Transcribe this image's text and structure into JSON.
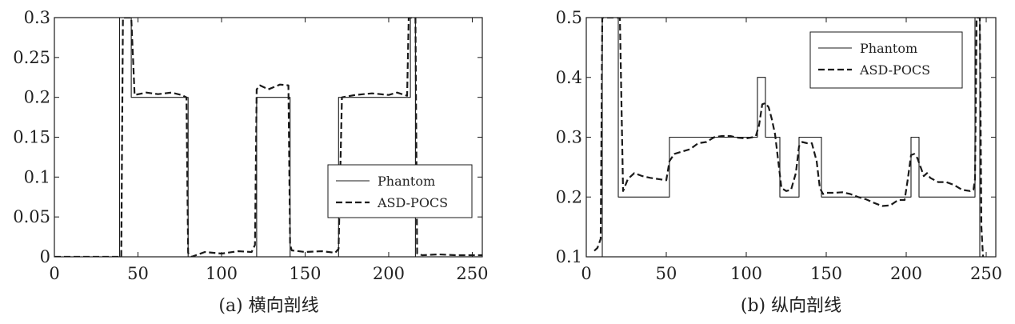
{
  "chart_data": [
    {
      "type": "line",
      "caption": "(a) 横向剖线",
      "xlim": [
        0,
        256
      ],
      "ylim": [
        0,
        0.3
      ],
      "xticks": [
        0,
        50,
        100,
        150,
        200,
        250
      ],
      "xtick_labels": [
        "0",
        "50",
        "100",
        "150",
        "200",
        "250"
      ],
      "yticks": [
        0,
        0.05,
        0.1,
        0.15,
        0.2,
        0.25,
        0.3
      ],
      "ytick_labels": [
        "0",
        "0.05",
        "0.1",
        "0.15",
        "0.2",
        "0.25",
        "0.3"
      ],
      "legend": {
        "position": "lower-right"
      },
      "series": [
        {
          "name": "Phantom",
          "style": "solid",
          "x": [
            0,
            39,
            39,
            40,
            40,
            41,
            41,
            46,
            46,
            80,
            80,
            121,
            121,
            141,
            141,
            170,
            170,
            213,
            213,
            214,
            214,
            216,
            216,
            256
          ],
          "y": [
            0,
            0,
            0.3,
            0.3,
            0.3,
            0.3,
            0.3,
            0.3,
            0.2,
            0.2,
            0,
            0,
            0.2,
            0.2,
            0,
            0,
            0.2,
            0.2,
            0.3,
            0.3,
            0.3,
            0.3,
            0,
            0
          ]
        },
        {
          "name": "ASD-POCS",
          "style": "dashed",
          "x": [
            0,
            38,
            40,
            41,
            43,
            46,
            48,
            55,
            62,
            70,
            76,
            79,
            80,
            82,
            90,
            100,
            110,
            118,
            120,
            121,
            123,
            128,
            135,
            140,
            141,
            142,
            150,
            160,
            168,
            170,
            172,
            180,
            190,
            200,
            205,
            211,
            212,
            214,
            215,
            216,
            217,
            220,
            230,
            240,
            256
          ],
          "y": [
            0,
            0,
            0,
            0.3,
            0.3,
            0.3,
            0.203,
            0.206,
            0.204,
            0.206,
            0.203,
            0.2,
            0.005,
            0,
            0.006,
            0.004,
            0.007,
            0.006,
            0.015,
            0.21,
            0.215,
            0.21,
            0.216,
            0.215,
            0.015,
            0.008,
            0.006,
            0.007,
            0.005,
            0.01,
            0.2,
            0.203,
            0.205,
            0.203,
            0.206,
            0.202,
            0.3,
            0.3,
            0.3,
            0.3,
            0.004,
            0.002,
            0.003,
            0.002,
            0.002
          ]
        }
      ]
    },
    {
      "type": "line",
      "caption": "(b) 纵向剖线",
      "xlim": [
        0,
        256
      ],
      "ylim": [
        0.1,
        0.5
      ],
      "xticks": [
        0,
        50,
        100,
        150,
        200,
        250
      ],
      "xtick_labels": [
        "0",
        "50",
        "100",
        "150",
        "200",
        "250"
      ],
      "yticks": [
        0.1,
        0.2,
        0.3,
        0.4,
        0.5
      ],
      "ytick_labels": [
        "0.1",
        "0.2",
        "0.3",
        "0.4",
        "0.5"
      ],
      "legend": {
        "position": "top-right"
      },
      "series": [
        {
          "name": "Phantom",
          "style": "solid",
          "x": [
            0,
            10,
            10,
            20,
            20,
            52,
            52,
            107,
            107,
            112,
            112,
            121,
            121,
            133,
            133,
            147,
            147,
            203,
            203,
            208,
            208,
            243,
            243,
            246,
            246,
            256
          ],
          "y": [
            0.1,
            0.1,
            0.5,
            0.5,
            0.2,
            0.2,
            0.3,
            0.3,
            0.4,
            0.4,
            0.3,
            0.3,
            0.2,
            0.2,
            0.3,
            0.3,
            0.2,
            0.2,
            0.3,
            0.3,
            0.2,
            0.2,
            0.5,
            0.5,
            0.1,
            0.1
          ]
        },
        {
          "name": "ASD-POCS",
          "style": "dashed",
          "x": [
            5,
            7,
            9,
            10,
            11,
            12,
            19,
            20,
            21,
            23,
            26,
            30,
            35,
            40,
            45,
            50,
            52,
            55,
            60,
            65,
            70,
            75,
            80,
            85,
            90,
            95,
            100,
            104,
            106,
            108,
            110,
            112,
            114,
            116,
            118,
            120,
            122,
            125,
            128,
            131,
            133,
            135,
            138,
            141,
            144,
            146,
            148,
            150,
            155,
            160,
            165,
            170,
            175,
            180,
            185,
            190,
            195,
            199,
            201,
            203,
            205,
            207,
            209,
            211,
            213,
            215,
            220,
            225,
            230,
            235,
            240,
            242,
            243,
            244,
            245,
            246,
            247,
            248
          ],
          "y": [
            0.11,
            0.115,
            0.13,
            0.5,
            0.5,
            0.5,
            0.5,
            0.5,
            0.5,
            0.21,
            0.23,
            0.24,
            0.235,
            0.232,
            0.23,
            0.228,
            0.26,
            0.272,
            0.276,
            0.28,
            0.29,
            0.292,
            0.3,
            0.302,
            0.302,
            0.299,
            0.298,
            0.3,
            0.302,
            0.32,
            0.355,
            0.357,
            0.35,
            0.33,
            0.305,
            0.26,
            0.215,
            0.21,
            0.212,
            0.24,
            0.285,
            0.292,
            0.29,
            0.29,
            0.26,
            0.215,
            0.205,
            0.207,
            0.207,
            0.208,
            0.205,
            0.2,
            0.196,
            0.19,
            0.185,
            0.186,
            0.195,
            0.195,
            0.23,
            0.27,
            0.272,
            0.265,
            0.25,
            0.235,
            0.24,
            0.232,
            0.225,
            0.225,
            0.22,
            0.212,
            0.21,
            0.212,
            0.23,
            0.5,
            0.5,
            0.5,
            0.15,
            0.1
          ]
        }
      ]
    }
  ]
}
